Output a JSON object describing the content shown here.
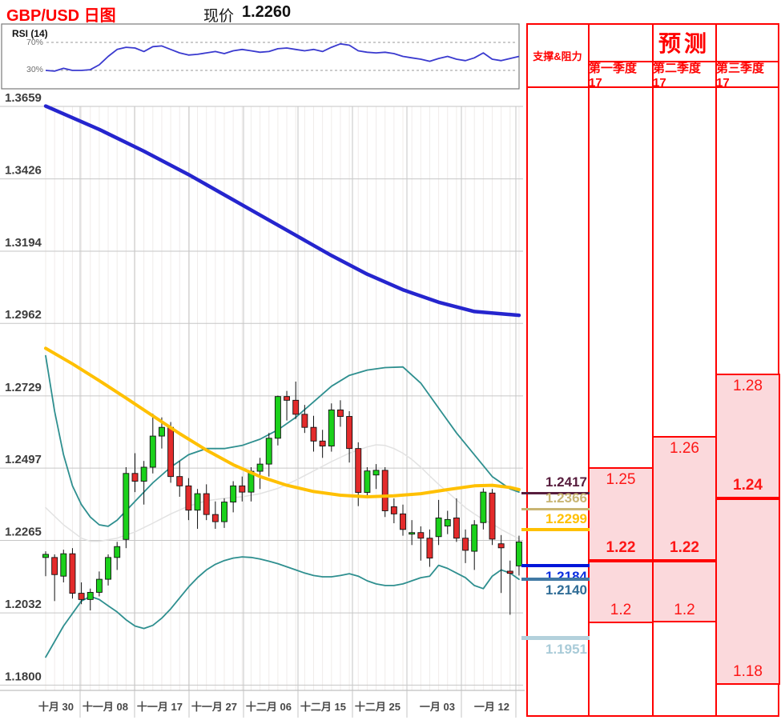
{
  "header": {
    "title": "GBP/USD 日图",
    "price_label": "现价",
    "price_value": "1.2260"
  },
  "panel": {
    "sr_header": "支撑&阻力",
    "forecast_header": "预测"
  },
  "rsi_panel": {
    "label": "RSI (14)",
    "upper_label": "70%",
    "lower_label": "30%"
  },
  "chart_data": {
    "type": "candlestick",
    "title": "GBP/USD 日图",
    "current_price": 1.226,
    "y_axis": {
      "labels": [
        "1.3659",
        "1.3426",
        "1.3194",
        "1.2962",
        "1.2729",
        "1.2497",
        "1.2265",
        "1.2032",
        "1.1800"
      ],
      "min": 1.18,
      "max": 1.3659
    },
    "x_axis": {
      "labels": [
        "十月 30",
        "十一月 08",
        "十一月 17",
        "十一月 27",
        "十二月 06",
        "十二月 15",
        "十二月 25",
        "一月 03",
        "一月 12"
      ]
    },
    "rsi": {
      "label": "RSI (14)",
      "levels": [
        70,
        30
      ],
      "color": "#3a3acf",
      "values": [
        30,
        29,
        33,
        30,
        30,
        31,
        38,
        50,
        60,
        63,
        62,
        57,
        64,
        65,
        60,
        55,
        52,
        53,
        55,
        57,
        54,
        58,
        60,
        58,
        56,
        57,
        61,
        62,
        60,
        58,
        60,
        57,
        63,
        68,
        66,
        58,
        56,
        55,
        56,
        54,
        50,
        48,
        46,
        43,
        47,
        50,
        46,
        44,
        48,
        55,
        46,
        44,
        47,
        50
      ]
    },
    "colors": {
      "up": "#1bd11b",
      "down": "#e32b2b",
      "wick": "#111111",
      "grid": "#c6c6c6",
      "minor_grid": "#f0ecea",
      "forecast_fill": "#fbd9dc",
      "accent_red": "#ff0000"
    },
    "candles": [
      [
        1.221,
        1.223,
        1.215,
        1.222
      ],
      [
        1.221,
        1.222,
        1.207,
        1.2155
      ],
      [
        1.215,
        1.2235,
        1.213,
        1.2222
      ],
      [
        1.2222,
        1.224,
        1.2078,
        1.2095
      ],
      [
        1.2095,
        1.213,
        1.206,
        1.2075
      ],
      [
        1.2075,
        1.211,
        1.204,
        1.2098
      ],
      [
        1.2098,
        1.2165,
        1.2085,
        1.214
      ],
      [
        1.214,
        1.222,
        1.212,
        1.221
      ],
      [
        1.221,
        1.226,
        1.217,
        1.2245
      ],
      [
        1.2268,
        1.25,
        1.224,
        1.248
      ],
      [
        1.248,
        1.2545,
        1.242,
        1.2455
      ],
      [
        1.2455,
        1.252,
        1.238,
        1.25
      ],
      [
        1.25,
        1.2672,
        1.248,
        1.26
      ],
      [
        1.26,
        1.266,
        1.256,
        1.2628
      ],
      [
        1.2628,
        1.2645,
        1.245,
        1.247
      ],
      [
        1.247,
        1.252,
        1.2405,
        1.244
      ],
      [
        1.244,
        1.2465,
        1.233,
        1.2362
      ],
      [
        1.2362,
        1.243,
        1.2302,
        1.2415
      ],
      [
        1.2415,
        1.2445,
        1.233,
        1.2348
      ],
      [
        1.2348,
        1.239,
        1.2302,
        1.2325
      ],
      [
        1.2325,
        1.24,
        1.2305,
        1.2388
      ],
      [
        1.2388,
        1.2455,
        1.2355,
        1.244
      ],
      [
        1.244,
        1.247,
        1.239,
        1.242
      ],
      [
        1.242,
        1.25,
        1.239,
        1.2487
      ],
      [
        1.2487,
        1.253,
        1.243,
        1.251
      ],
      [
        1.251,
        1.261,
        1.247,
        1.2593
      ],
      [
        1.2593,
        1.273,
        1.257,
        1.2727
      ],
      [
        1.2727,
        1.2745,
        1.265,
        1.2715
      ],
      [
        1.2715,
        1.2775,
        1.2655,
        1.267
      ],
      [
        1.267,
        1.27,
        1.261,
        1.2628
      ],
      [
        1.2628,
        1.2665,
        1.255,
        1.2584
      ],
      [
        1.2584,
        1.262,
        1.253,
        1.2568
      ],
      [
        1.2568,
        1.2705,
        1.255,
        1.2684
      ],
      [
        1.2684,
        1.2715,
        1.263,
        1.2663
      ],
      [
        1.2663,
        1.268,
        1.2515,
        1.256
      ],
      [
        1.256,
        1.258,
        1.2375,
        1.2419
      ],
      [
        1.2419,
        1.25,
        1.24,
        1.2488
      ],
      [
        1.2475,
        1.251,
        1.243,
        1.249
      ],
      [
        1.249,
        1.25,
        1.234,
        1.236
      ],
      [
        1.2373,
        1.24,
        1.232,
        1.235
      ],
      [
        1.235,
        1.238,
        1.228,
        1.23
      ],
      [
        1.2285,
        1.233,
        1.225,
        1.229
      ],
      [
        1.229,
        1.231,
        1.22,
        1.2272
      ],
      [
        1.2272,
        1.23,
        1.218,
        1.2208
      ],
      [
        1.2277,
        1.2395,
        1.225,
        1.2337
      ],
      [
        1.2311,
        1.236,
        1.2285,
        1.2332
      ],
      [
        1.2337,
        1.24,
        1.226,
        1.2272
      ],
      [
        1.2272,
        1.23,
        1.2192,
        1.2233
      ],
      [
        1.223,
        1.233,
        1.217,
        1.2315
      ],
      [
        1.2322,
        1.2432,
        1.23,
        1.242
      ],
      [
        1.2417,
        1.243,
        1.225,
        1.2269
      ],
      [
        1.2254,
        1.2282,
        1.2096,
        1.2241
      ],
      [
        1.2166,
        1.22,
        1.2026,
        1.2159
      ],
      [
        1.2183,
        1.228,
        1.2152,
        1.226
      ]
    ],
    "overlays": {
      "ma_long": {
        "name": "long-term-ma",
        "color": "#2525ce",
        "width": 4.5,
        "points": [
          [
            0,
            1.366
          ],
          [
            6,
            1.3585
          ],
          [
            11,
            1.3515
          ],
          [
            16,
            1.344
          ],
          [
            20,
            1.3375
          ],
          [
            24,
            1.331
          ],
          [
            28,
            1.3245
          ],
          [
            32,
            1.318
          ],
          [
            36,
            1.312
          ],
          [
            40,
            1.307
          ],
          [
            44,
            1.303
          ],
          [
            48,
            1.3
          ],
          [
            53,
            1.2988
          ]
        ]
      },
      "ma_mid": {
        "name": "medium-term-ma",
        "color": "#ffc000",
        "width": 4,
        "points": [
          [
            0,
            1.2882
          ],
          [
            3,
            1.2832
          ],
          [
            6,
            1.2778
          ],
          [
            9,
            1.2722
          ],
          [
            12,
            1.2665
          ],
          [
            15,
            1.2608
          ],
          [
            18,
            1.2555
          ],
          [
            21,
            1.2508
          ],
          [
            24,
            1.247
          ],
          [
            27,
            1.2442
          ],
          [
            30,
            1.2422
          ],
          [
            33,
            1.241
          ],
          [
            36,
            1.2405
          ],
          [
            39,
            1.2408
          ],
          [
            42,
            1.2415
          ],
          [
            45,
            1.2428
          ],
          [
            48,
            1.244
          ],
          [
            50,
            1.2442
          ],
          [
            52,
            1.2435
          ],
          [
            53,
            1.2428
          ]
        ]
      },
      "bb_mid": {
        "name": "bollinger-middle",
        "color": "#e2e2e2",
        "width": 1.5,
        "points": [
          [
            0,
            1.237
          ],
          [
            2,
            1.2315
          ],
          [
            4,
            1.2272
          ],
          [
            5,
            1.2262
          ],
          [
            6,
            1.2262
          ],
          [
            8,
            1.2272
          ],
          [
            10,
            1.2292
          ],
          [
            12,
            1.232
          ],
          [
            14,
            1.235
          ],
          [
            16,
            1.2375
          ],
          [
            18,
            1.2392
          ],
          [
            20,
            1.24
          ],
          [
            22,
            1.2405
          ],
          [
            24,
            1.2415
          ],
          [
            26,
            1.2432
          ],
          [
            28,
            1.2458
          ],
          [
            30,
            1.2488
          ],
          [
            32,
            1.2518
          ],
          [
            34,
            1.2545
          ],
          [
            36,
            1.2565
          ],
          [
            37,
            1.2572
          ],
          [
            38,
            1.257
          ],
          [
            39,
            1.256
          ],
          [
            40,
            1.2545
          ],
          [
            41,
            1.2525
          ],
          [
            42,
            1.25
          ],
          [
            43,
            1.2472
          ],
          [
            44,
            1.2445
          ],
          [
            45,
            1.242
          ],
          [
            46,
            1.2395
          ],
          [
            47,
            1.237
          ],
          [
            48,
            1.235
          ],
          [
            49,
            1.2332
          ],
          [
            50,
            1.2318
          ],
          [
            51,
            1.23
          ],
          [
            52,
            1.2285
          ],
          [
            53,
            1.227
          ]
        ]
      },
      "bb_upper": {
        "name": "bollinger-upper",
        "color": "#2e8f8f",
        "width": 1.8,
        "points": [
          [
            0,
            1.2858
          ],
          [
            1,
            1.268
          ],
          [
            2,
            1.254
          ],
          [
            3,
            1.244
          ],
          [
            4,
            1.238
          ],
          [
            5,
            1.234
          ],
          [
            6,
            1.2315
          ],
          [
            7,
            1.231
          ],
          [
            8,
            1.233
          ],
          [
            10,
            1.239
          ],
          [
            12,
            1.245
          ],
          [
            14,
            1.25
          ],
          [
            16,
            1.254
          ],
          [
            18,
            1.256
          ],
          [
            20,
            1.256
          ],
          [
            22,
            1.257
          ],
          [
            24,
            1.259
          ],
          [
            26,
            1.262
          ],
          [
            28,
            1.266
          ],
          [
            30,
            1.271
          ],
          [
            32,
            1.276
          ],
          [
            34,
            1.2795
          ],
          [
            36,
            1.2812
          ],
          [
            38,
            1.282
          ],
          [
            40,
            1.2822
          ],
          [
            42,
            1.277
          ],
          [
            44,
            1.269
          ],
          [
            46,
            1.261
          ],
          [
            48,
            1.254
          ],
          [
            50,
            1.247
          ],
          [
            52,
            1.243
          ],
          [
            53,
            1.242
          ]
        ]
      },
      "bb_lower": {
        "name": "bollinger-lower",
        "color": "#2e8f8f",
        "width": 1.8,
        "points": [
          [
            0,
            1.189
          ],
          [
            2,
            1.199
          ],
          [
            4,
            1.207
          ],
          [
            5,
            1.2085
          ],
          [
            6,
            1.2075
          ],
          [
            7,
            1.2055
          ],
          [
            8,
            1.2035
          ],
          [
            9,
            1.201
          ],
          [
            10,
            1.199
          ],
          [
            11,
            1.1982
          ],
          [
            12,
            1.1992
          ],
          [
            13,
            1.2015
          ],
          [
            14,
            1.2045
          ],
          [
            15,
            1.208
          ],
          [
            16,
            1.2115
          ],
          [
            17,
            1.2145
          ],
          [
            18,
            1.217
          ],
          [
            19,
            1.2188
          ],
          [
            20,
            1.22
          ],
          [
            21,
            1.2208
          ],
          [
            22,
            1.2212
          ],
          [
            23,
            1.221
          ],
          [
            24,
            1.2205
          ],
          [
            25,
            1.2198
          ],
          [
            26,
            1.219
          ],
          [
            27,
            1.218
          ],
          [
            28,
            1.217
          ],
          [
            29,
            1.216
          ],
          [
            30,
            1.2152
          ],
          [
            31,
            1.2148
          ],
          [
            32,
            1.2148
          ],
          [
            33,
            1.2152
          ],
          [
            34,
            1.2158
          ],
          [
            35,
            1.215
          ],
          [
            36,
            1.2135
          ],
          [
            37,
            1.2125
          ],
          [
            38,
            1.212
          ],
          [
            39,
            1.212
          ],
          [
            40,
            1.2125
          ],
          [
            41,
            1.2135
          ],
          [
            42,
            1.2145
          ],
          [
            43,
            1.215
          ],
          [
            44,
            1.2185
          ],
          [
            45,
            1.2175
          ],
          [
            46,
            1.216
          ],
          [
            47,
            1.2145
          ],
          [
            48,
            1.212
          ],
          [
            49,
            1.211
          ],
          [
            50,
            1.215
          ],
          [
            51,
            1.217
          ],
          [
            52,
            1.216
          ],
          [
            53,
            1.214
          ]
        ]
      }
    },
    "support_resistance": [
      {
        "label": "1.2417",
        "value": 1.2417,
        "color": "#571d3d",
        "text_color": "#571d3d",
        "side": "above",
        "thickness": 3
      },
      {
        "label": "1.2366",
        "value": 1.2366,
        "color": "#c8b573",
        "text_color": "#c8b573",
        "side": "above",
        "thickness": 3
      },
      {
        "label": "1.2299",
        "value": 1.2299,
        "color": "#ffc000",
        "text_color": "#ffc000",
        "side": "above",
        "thickness": 4
      },
      {
        "label": "1.2184",
        "value": 1.2184,
        "color": "#0016d9",
        "text_color": "#0a2fe0",
        "side": "below",
        "thickness": 4
      },
      {
        "label": "1.2140",
        "value": 1.214,
        "color": "#4179a4",
        "text_color": "#2f6c96",
        "side": "below",
        "thickness": 3.5
      },
      {
        "label": "1.1951",
        "value": 1.1951,
        "color": "#b3d1dc",
        "text_color": "#a9cbd8",
        "side": "below",
        "thickness": 4.5
      }
    ],
    "forecasts": [
      {
        "quarter": "第一季度 17",
        "high": 1.25,
        "close": 1.22,
        "low": 1.2,
        "high_label": "1.25",
        "close_label": "1.22",
        "low_label": "1.2"
      },
      {
        "quarter": "第二季度 17",
        "high": 1.26,
        "close": 1.22,
        "low": 1.2,
        "high_label": "1.26",
        "close_label": "1.22",
        "low_label": "1.2"
      },
      {
        "quarter": "第三季度 17",
        "high": 1.28,
        "close": 1.24,
        "low": 1.18,
        "high_label": "1.28",
        "close_label": "1.24",
        "low_label": "1.18"
      }
    ]
  }
}
